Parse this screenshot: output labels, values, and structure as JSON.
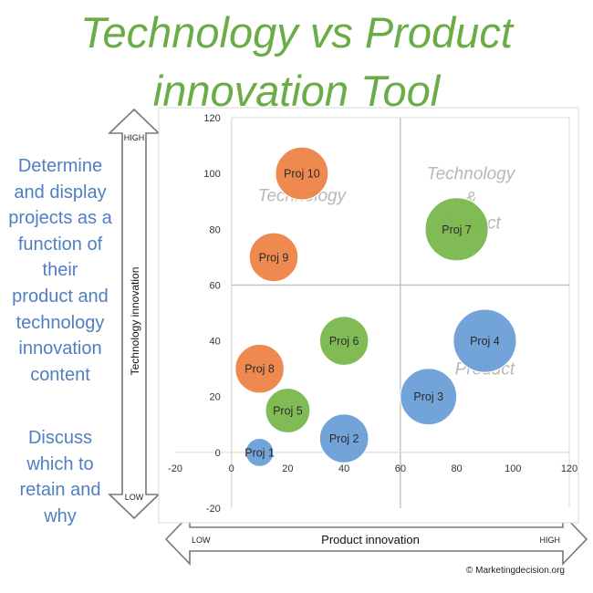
{
  "title_lines": [
    "Technology vs Product",
    "innovation Tool"
  ],
  "side_text": {
    "description_lines": [
      "Determine",
      "and display",
      "projects as a",
      "function of",
      "their",
      "product and",
      "technology",
      "innovation",
      "content"
    ],
    "discussion_lines": [
      "Discuss",
      "which to",
      "retain and",
      "why"
    ]
  },
  "vertical_arrow": {
    "top_label": "HIGH",
    "bottom_label": "LOW",
    "title": "Technology innovation"
  },
  "horizontal_arrow": {
    "left_label": "LOW",
    "right_label": "HIGH",
    "title": "Product innovation"
  },
  "copyright": "© Marketingdecision.org",
  "colors": {
    "title": "#6aac46",
    "side_text": "#4f7fc1",
    "blue": "#6b9fd8",
    "green": "#7ab84e",
    "orange": "#ee8447",
    "quadrant_text": "#b8b8b8"
  },
  "chart_data": {
    "type": "scatter",
    "subtype": "bubble",
    "xlim": [
      -20,
      120
    ],
    "ylim": [
      -20,
      120
    ],
    "xticks": [
      -20,
      0,
      20,
      40,
      60,
      80,
      100,
      120
    ],
    "yticks": [
      -20,
      0,
      20,
      40,
      60,
      80,
      100,
      120
    ],
    "grid": true,
    "quadrant_dividers": {
      "x": 60,
      "y": 60
    },
    "quadrant_labels": [
      {
        "text": "Technology",
        "x": 25,
        "y": 90
      },
      {
        "text": "Technology & Product",
        "x": 85,
        "y": 90
      },
      {
        "text": "Product",
        "x": 90,
        "y": 28
      }
    ],
    "points": [
      {
        "label": "Proj 1",
        "x": 10,
        "y": 0,
        "size": 1,
        "color": "blue"
      },
      {
        "label": "Proj 2",
        "x": 40,
        "y": 5,
        "size": 3,
        "color": "blue"
      },
      {
        "label": "Proj 3",
        "x": 70,
        "y": 20,
        "size": 4,
        "color": "blue"
      },
      {
        "label": "Proj 4",
        "x": 90,
        "y": 40,
        "size": 5,
        "color": "blue"
      },
      {
        "label": "Proj 5",
        "x": 20,
        "y": 15,
        "size": 2.5,
        "color": "green"
      },
      {
        "label": "Proj 6",
        "x": 40,
        "y": 40,
        "size": 3,
        "color": "green"
      },
      {
        "label": "Proj 7",
        "x": 80,
        "y": 80,
        "size": 5,
        "color": "green"
      },
      {
        "label": "Proj 8",
        "x": 10,
        "y": 30,
        "size": 3,
        "color": "orange"
      },
      {
        "label": "Proj 9",
        "x": 15,
        "y": 70,
        "size": 3,
        "color": "orange"
      },
      {
        "label": "Proj 10",
        "x": 25,
        "y": 100,
        "size": 3.5,
        "color": "orange"
      }
    ]
  }
}
